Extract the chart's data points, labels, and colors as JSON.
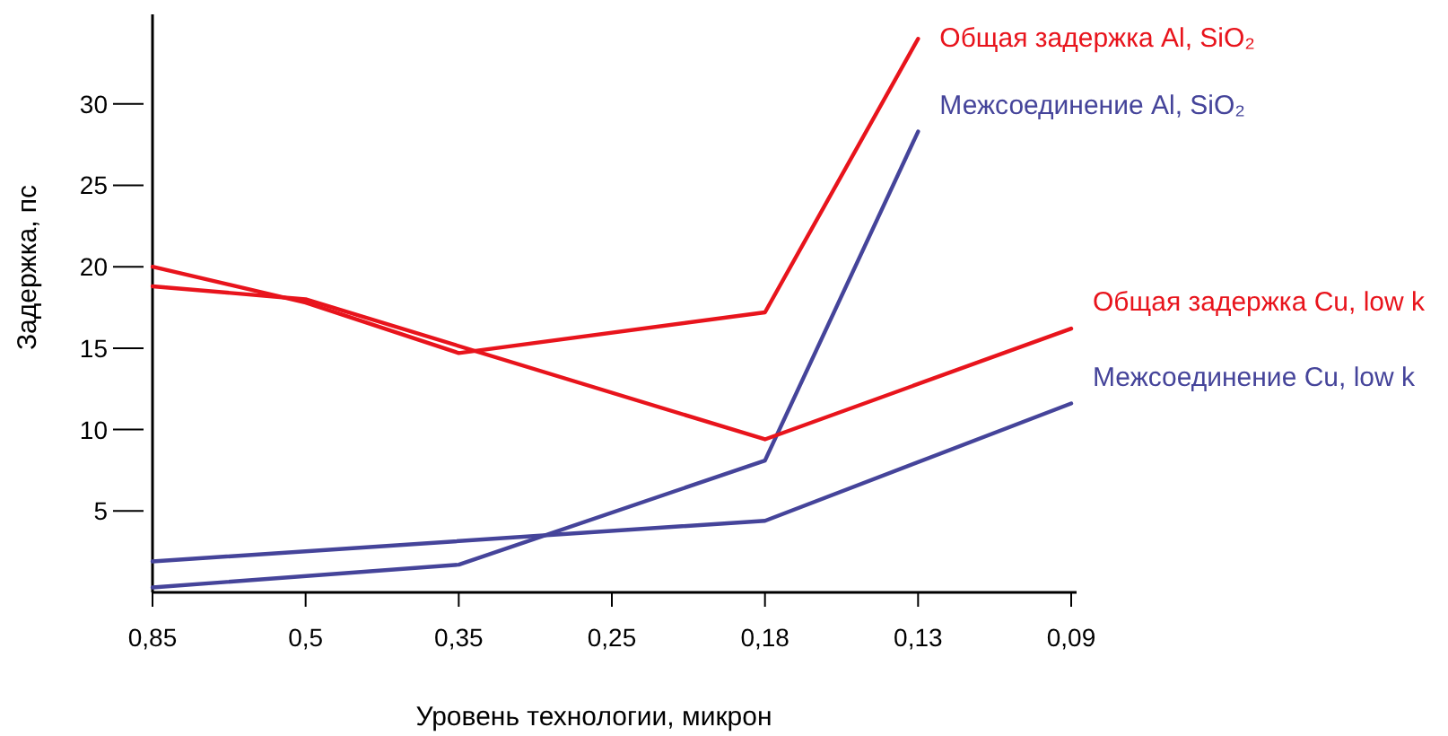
{
  "chart_data": {
    "type": "line",
    "xlabel": "Уровень технологии, микрон",
    "ylabel": "Задержка, пс",
    "categories": [
      "0,85",
      "0,5",
      "0,35",
      "0,25",
      "0,18",
      "0,13",
      "0,09"
    ],
    "ylim": [
      0,
      35.5
    ],
    "yticks": [
      5,
      10,
      15,
      20,
      25,
      30
    ],
    "grid": false,
    "legend": false,
    "marker": "none",
    "line_style": "solid",
    "series": [
      {
        "name": "Общая задержка Al, SiO₂",
        "color": "#e8141c",
        "x": [
          "0,85",
          "0,5",
          "0,35",
          "0,18",
          "0,13"
        ],
        "values": [
          20,
          17.8,
          14.7,
          17.2,
          34
        ]
      },
      {
        "name": "Межсоединение Al, SiO₂",
        "color": "#45449a",
        "x": [
          "0,85",
          "0,35",
          "0,18",
          "0,13"
        ],
        "values": [
          0.3,
          1.7,
          8.1,
          28.3
        ]
      },
      {
        "name": "Общая задержка Cu, low k",
        "color": "#e8141c",
        "x": [
          "0,85",
          "0,5",
          "0,18",
          "0,09"
        ],
        "values": [
          18.8,
          18,
          9.4,
          16.2
        ]
      },
      {
        "name": "Межсоединение Cu, low k",
        "color": "#45449a",
        "x": [
          "0,85",
          "0,18",
          "0,09"
        ],
        "values": [
          1.9,
          4.4,
          11.6
        ]
      }
    ]
  }
}
